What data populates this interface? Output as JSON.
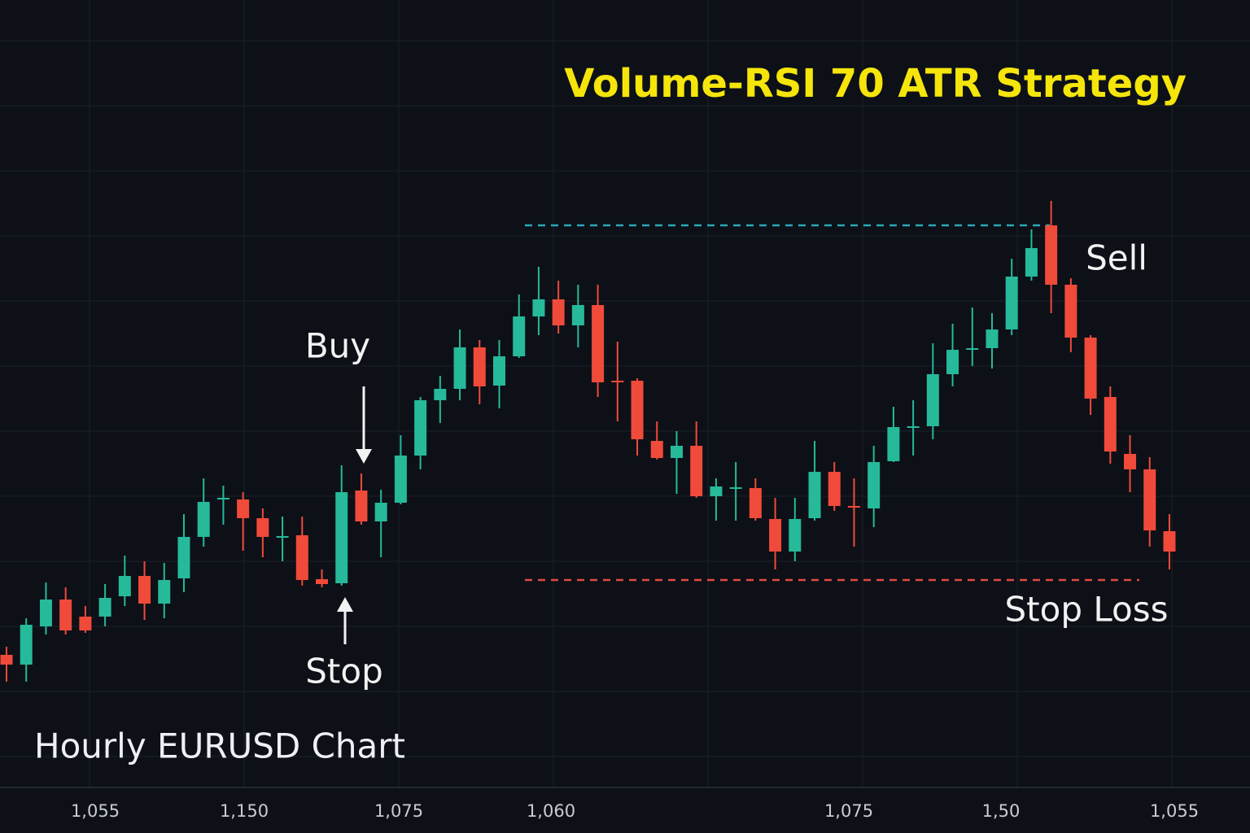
{
  "chart_data": {
    "type": "candlestick",
    "title": "Volume-RSI 70 ATR Strategy",
    "subtitle": "Hourly EURUSD Chart",
    "annotations": [
      "Buy",
      "Stop",
      "Sell",
      "Stop Loss"
    ],
    "x_labels": [
      "1,055",
      "1,150",
      "1,075",
      "1,060",
      "1,075",
      "1,50",
      "1,055"
    ],
    "ylim": [
      0,
      96
    ],
    "up_color": "#26b99a",
    "down_color": "#f04a3a",
    "open": [
      15.5,
      14.3,
      19,
      22.3,
      20.2,
      20.2,
      22.7,
      25.2,
      21.8,
      24.9,
      30,
      34.6,
      34.6,
      32.3,
      29.9,
      30.2,
      24.8,
      24.3,
      35.7,
      31.9,
      34.2,
      40,
      46.8,
      48.2,
      53.3,
      48.6,
      52.2,
      57.1,
      59.2,
      56,
      58.5,
      49.2,
      49.2,
      41.8,
      39.7,
      41.2,
      35,
      35.9,
      36,
      32.2,
      28.2,
      32.3,
      38,
      33.8,
      33.5,
      39.3,
      43.4,
      43.6,
      50,
      53,
      53.2,
      55.5,
      62,
      68.3,
      61,
      54.5,
      47.2,
      40.2,
      38.3,
      30.7
    ],
    "high": [
      16.5,
      20,
      24.4,
      23.8,
      21.5,
      24.2,
      27.7,
      27,
      26.8,
      32.8,
      37.2,
      36.3,
      35.5,
      33.5,
      32.5,
      32.5,
      26,
      38.8,
      37.8,
      35.8,
      42.5,
      47.2,
      49.8,
      55.5,
      54.2,
      54.2,
      59.8,
      63.2,
      61.5,
      61,
      61,
      54,
      49.5,
      44.2,
      43,
      44.2,
      37.2,
      39.2,
      37.2,
      34.8,
      34.8,
      41.8,
      39.2,
      37.2,
      41.2,
      46,
      46.8,
      53.8,
      56.2,
      58.2,
      57.5,
      64.2,
      67.8,
      71.3,
      61.8,
      54.8,
      48.5,
      42.5,
      39.8,
      32.8
    ],
    "low": [
      12.2,
      12.2,
      18,
      18,
      18.2,
      19,
      21.5,
      19.8,
      20,
      23.2,
      28.8,
      31.5,
      28.3,
      27.5,
      27,
      24,
      23.8,
      24,
      31.5,
      27.5,
      34,
      38.3,
      44,
      46.8,
      46.3,
      45.8,
      52,
      54.8,
      55,
      53.3,
      47.2,
      44.2,
      40,
      39.5,
      35.3,
      34.8,
      32,
      32,
      32,
      26,
      27,
      32,
      33.2,
      28.8,
      31.2,
      39.2,
      40,
      42,
      48.5,
      51,
      50.7,
      54.8,
      61.5,
      57.5,
      52.7,
      45,
      39,
      35.5,
      28.8,
      26
    ],
    "close": [
      14.3,
      19.2,
      22.3,
      18.5,
      18.5,
      22.5,
      25.2,
      21.8,
      24.7,
      30,
      34.3,
      34.8,
      32.3,
      30,
      30.1,
      24.7,
      24.2,
      35.5,
      31.9,
      34.2,
      40,
      46.8,
      48.2,
      53.3,
      48.5,
      52.2,
      57.1,
      59.2,
      56,
      58.5,
      49,
      49,
      42,
      39.7,
      41.2,
      35,
      36.2,
      36.1,
      32.3,
      28.2,
      32.2,
      38,
      33.8,
      33.6,
      39.2,
      43.5,
      43.6,
      50,
      53,
      53.2,
      55.5,
      62,
      65.5,
      61,
      54.5,
      47,
      40.5,
      38.3,
      30.8,
      28.2
    ]
  }
}
